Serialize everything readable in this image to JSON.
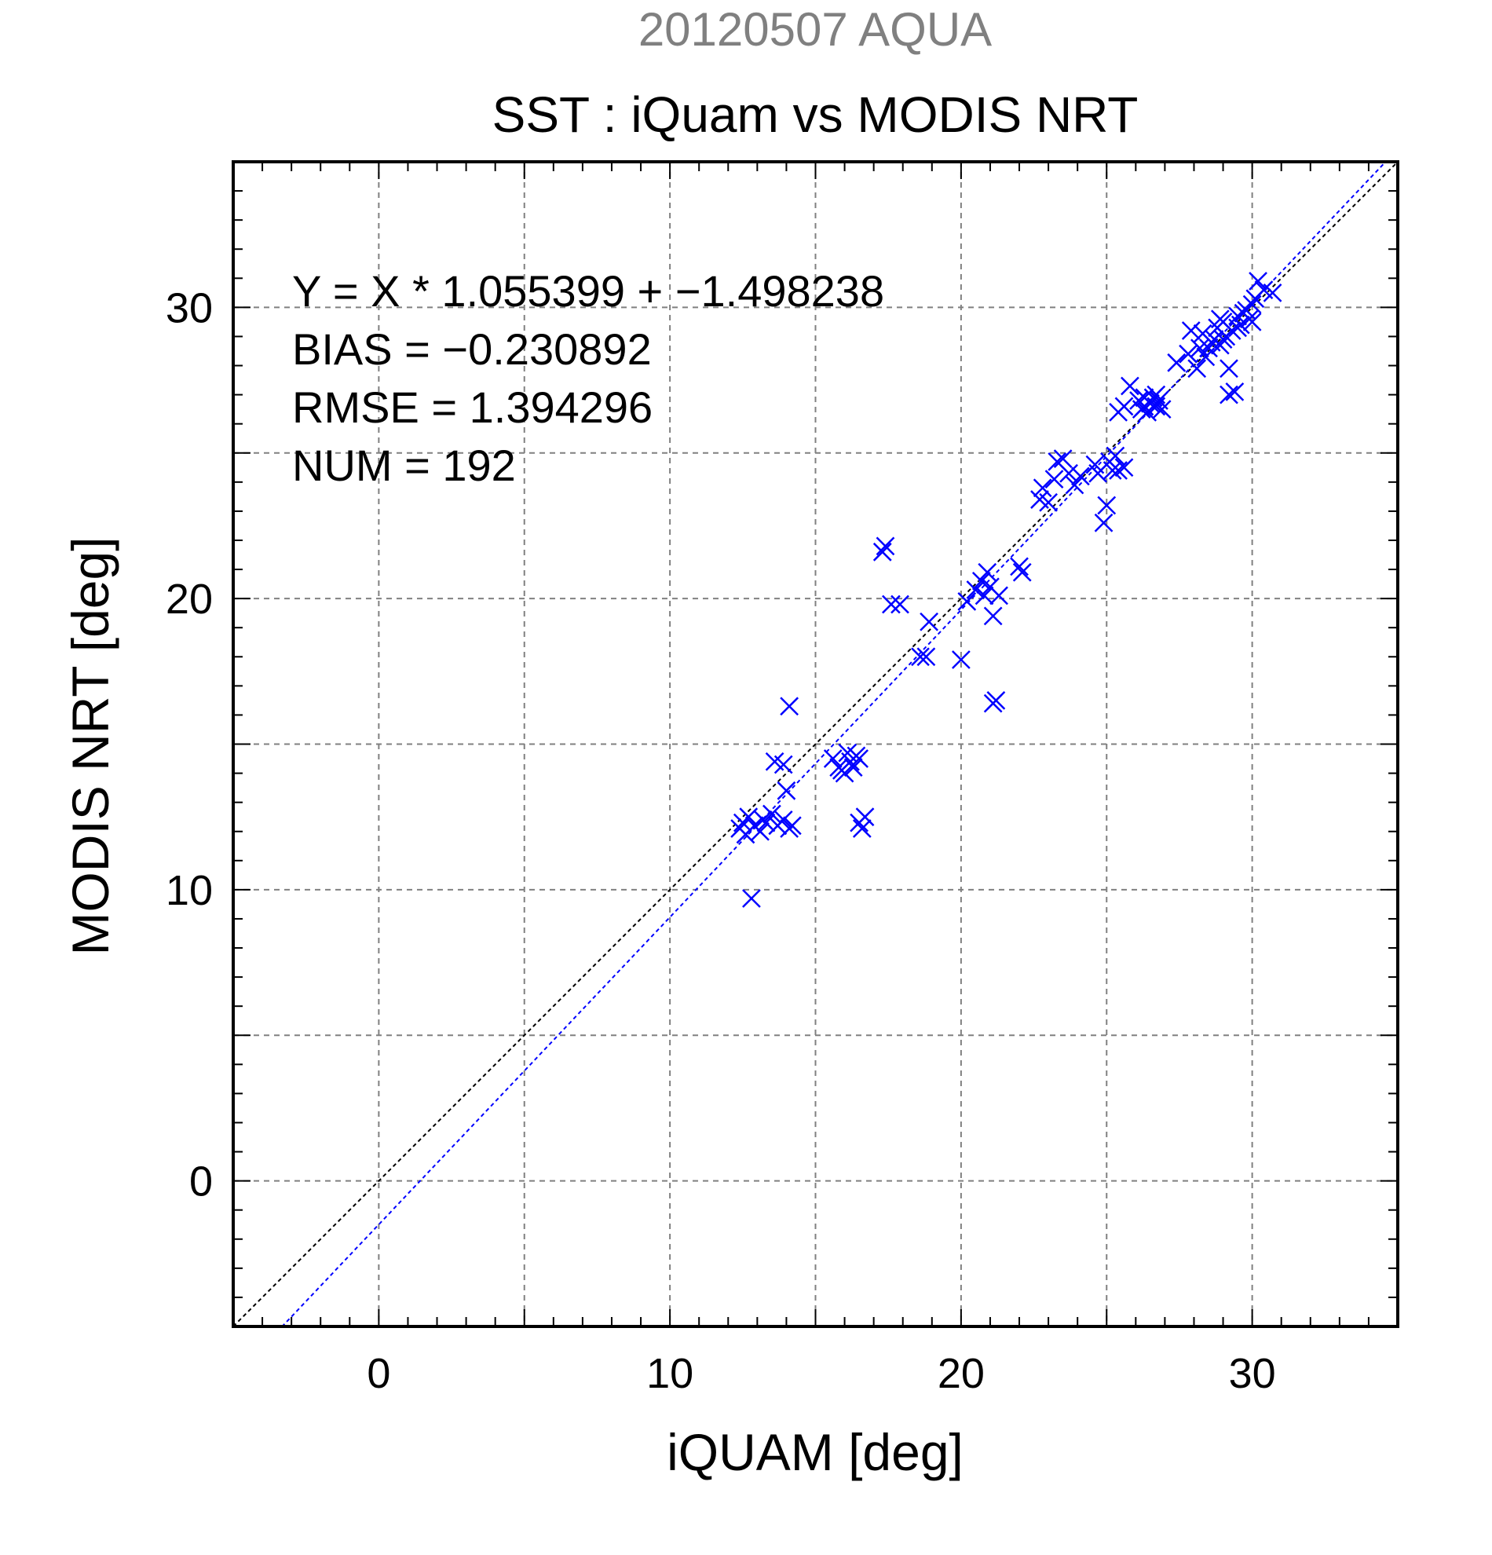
{
  "chart_data": {
    "type": "scatter",
    "title": "SST : iQuam vs MODIS NRT",
    "subtitle": "20120507 AQUA",
    "xlabel": "iQUAM [deg]",
    "ylabel": "MODIS NRT [deg]",
    "xlim": [
      -5,
      35
    ],
    "ylim": [
      -5,
      35
    ],
    "xticks": [
      0,
      10,
      20,
      30
    ],
    "yticks": [
      0,
      10,
      20,
      30
    ],
    "grid": true,
    "colors": {
      "points": "#0000ff",
      "fit_line": "#0000ff",
      "identity_line": "#000000",
      "subtitle": "#808080"
    },
    "fit": {
      "slope": 1.055399,
      "intercept": -1.498238
    },
    "stats": [
      "Y = X * 1.055399 + −1.498238",
      "BIAS = −0.230892",
      "RMSE = 1.394296",
      "NUM = 192"
    ],
    "points": [
      [
        12.4,
        12.1
      ],
      [
        12.6,
        11.9
      ],
      [
        12.7,
        12.5
      ],
      [
        12.9,
        12.2
      ],
      [
        13.1,
        12.0
      ],
      [
        12.8,
        9.7
      ],
      [
        13.3,
        12.3
      ],
      [
        13.5,
        12.6
      ],
      [
        13.7,
        12.2
      ],
      [
        13.9,
        12.4
      ],
      [
        14.1,
        12.1
      ],
      [
        13.6,
        14.4
      ],
      [
        14.0,
        13.4
      ],
      [
        14.1,
        16.3
      ],
      [
        13.9,
        14.3
      ],
      [
        13.2,
        12.4
      ],
      [
        12.5,
        12.3
      ],
      [
        14.2,
        12.2
      ],
      [
        15.6,
        14.5
      ],
      [
        15.8,
        14.2
      ],
      [
        16.0,
        14.0
      ],
      [
        16.2,
        14.4
      ],
      [
        16.4,
        14.6
      ],
      [
        16.1,
        14.7
      ],
      [
        15.9,
        14.1
      ],
      [
        16.3,
        14.2
      ],
      [
        16.5,
        14.5
      ],
      [
        16.5,
        12.3
      ],
      [
        16.6,
        12.1
      ],
      [
        16.7,
        12.5
      ],
      [
        17.3,
        21.6
      ],
      [
        17.4,
        21.8
      ],
      [
        17.6,
        19.8
      ],
      [
        17.9,
        19.8
      ],
      [
        18.6,
        18.0
      ],
      [
        18.8,
        18.0
      ],
      [
        18.9,
        19.2
      ],
      [
        20.0,
        17.9
      ],
      [
        20.2,
        19.9
      ],
      [
        20.5,
        20.3
      ],
      [
        20.7,
        20.6
      ],
      [
        20.8,
        20.1
      ],
      [
        20.9,
        20.9
      ],
      [
        21.0,
        20.4
      ],
      [
        21.1,
        19.4
      ],
      [
        21.1,
        16.4
      ],
      [
        21.2,
        16.5
      ],
      [
        21.3,
        20.1
      ],
      [
        22.0,
        21.1
      ],
      [
        22.1,
        20.9
      ],
      [
        22.7,
        23.4
      ],
      [
        22.8,
        23.8
      ],
      [
        23.0,
        23.3
      ],
      [
        23.2,
        24.1
      ],
      [
        23.3,
        24.7
      ],
      [
        23.5,
        24.8
      ],
      [
        23.7,
        24.3
      ],
      [
        23.9,
        23.9
      ],
      [
        24.1,
        24.2
      ],
      [
        24.6,
        24.6
      ],
      [
        24.7,
        24.3
      ],
      [
        24.9,
        22.6
      ],
      [
        25.0,
        23.2
      ],
      [
        25.1,
        24.7
      ],
      [
        25.2,
        24.4
      ],
      [
        25.3,
        24.9
      ],
      [
        25.4,
        24.4
      ],
      [
        25.6,
        24.5
      ],
      [
        25.4,
        26.4
      ],
      [
        25.6,
        26.6
      ],
      [
        25.8,
        27.3
      ],
      [
        26.1,
        26.8
      ],
      [
        26.2,
        26.5
      ],
      [
        26.3,
        26.9
      ],
      [
        26.4,
        26.4
      ],
      [
        26.5,
        26.7
      ],
      [
        26.6,
        26.9
      ],
      [
        26.7,
        26.6
      ],
      [
        26.8,
        26.8
      ],
      [
        26.9,
        26.5
      ],
      [
        26.7,
        27.0
      ],
      [
        27.4,
        28.1
      ],
      [
        27.8,
        28.4
      ],
      [
        27.9,
        29.2
      ],
      [
        28.1,
        27.9
      ],
      [
        28.2,
        28.6
      ],
      [
        28.3,
        29.1
      ],
      [
        28.4,
        28.3
      ],
      [
        28.6,
        28.8
      ],
      [
        28.7,
        28.9
      ],
      [
        28.8,
        29.3
      ],
      [
        28.9,
        28.7
      ],
      [
        29.0,
        29.5
      ],
      [
        29.1,
        29.0
      ],
      [
        29.2,
        27.9
      ],
      [
        29.2,
        27.0
      ],
      [
        29.4,
        27.1
      ],
      [
        29.5,
        29.7
      ],
      [
        29.6,
        29.4
      ],
      [
        29.8,
        29.9
      ],
      [
        29.9,
        29.6
      ],
      [
        30.0,
        29.5
      ],
      [
        30.1,
        30.3
      ],
      [
        30.2,
        30.9
      ],
      [
        30.4,
        30.6
      ],
      [
        30.7,
        30.5
      ],
      [
        29.3,
        29.2
      ],
      [
        29.7,
        29.8
      ],
      [
        28.5,
        28.6
      ],
      [
        29.0,
        28.9
      ],
      [
        30.0,
        30.1
      ],
      [
        28.9,
        29.6
      ],
      [
        29.5,
        29.3
      ],
      [
        26.3,
        26.6
      ]
    ]
  }
}
